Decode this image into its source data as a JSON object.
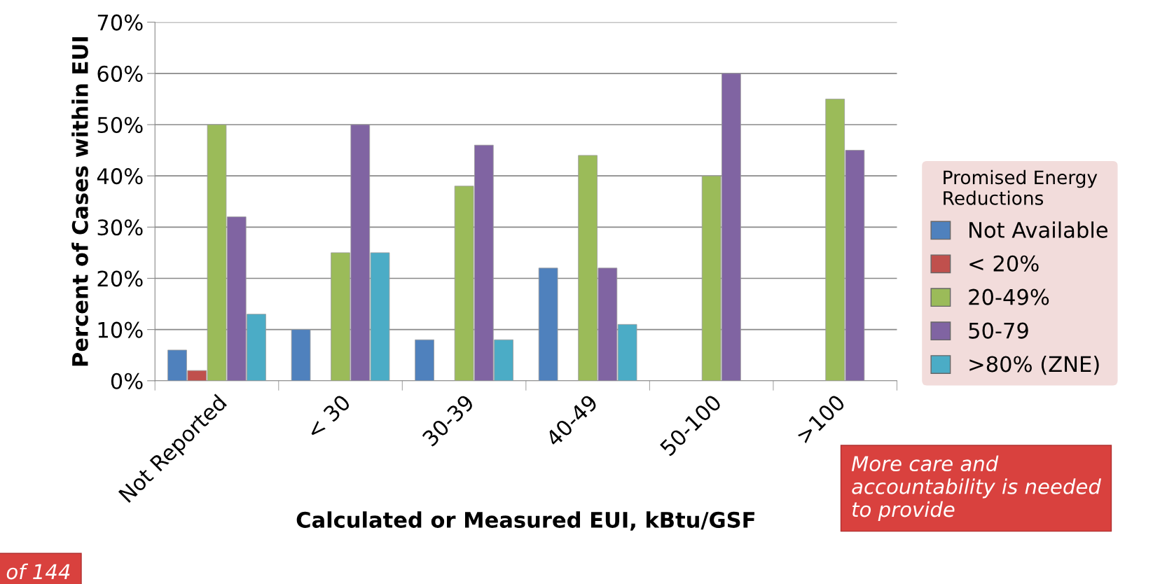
{
  "chart_data": {
    "type": "bar",
    "xlabel": "Calculated or Measured EUI, kBtu/GSF",
    "ylabel": "Percent of Cases within EUI",
    "legend_title": "Promised Energy Reductions",
    "categories": [
      "Not Reported",
      "< 30",
      "30-39",
      "40-49",
      "50-100",
      ">100"
    ],
    "series": [
      {
        "name": "Not Available",
        "color": "#4f81bd",
        "values": [
          6,
          10,
          8,
          22,
          null,
          null
        ]
      },
      {
        "name": "< 20%",
        "color": "#c0504d",
        "values": [
          2,
          null,
          null,
          null,
          null,
          null
        ]
      },
      {
        "name": "20-49%",
        "color": "#9bbb59",
        "values": [
          50,
          25,
          38,
          44,
          40,
          55
        ]
      },
      {
        "name": "50-79",
        "color": "#8064a2",
        "values": [
          32,
          50,
          46,
          22,
          60,
          45
        ]
      },
      {
        "name": ">80% (ZNE)",
        "color": "#4bacc6",
        "values": [
          13,
          25,
          8,
          11,
          null,
          null
        ]
      }
    ],
    "ylim": [
      0,
      70
    ],
    "yticks": [
      {
        "value": 0,
        "label": "0%"
      },
      {
        "value": 10,
        "label": "10%"
      },
      {
        "value": 20,
        "label": "20%"
      },
      {
        "value": 30,
        "label": "30%"
      },
      {
        "value": 40,
        "label": "40%"
      },
      {
        "value": 50,
        "label": "50%"
      },
      {
        "value": 60,
        "label": "60%"
      },
      {
        "value": 70,
        "label": "70%"
      }
    ],
    "grid": "y",
    "legend": "right",
    "annotations": [
      "of 144",
      "More care and accountability is needed to provide"
    ]
  }
}
